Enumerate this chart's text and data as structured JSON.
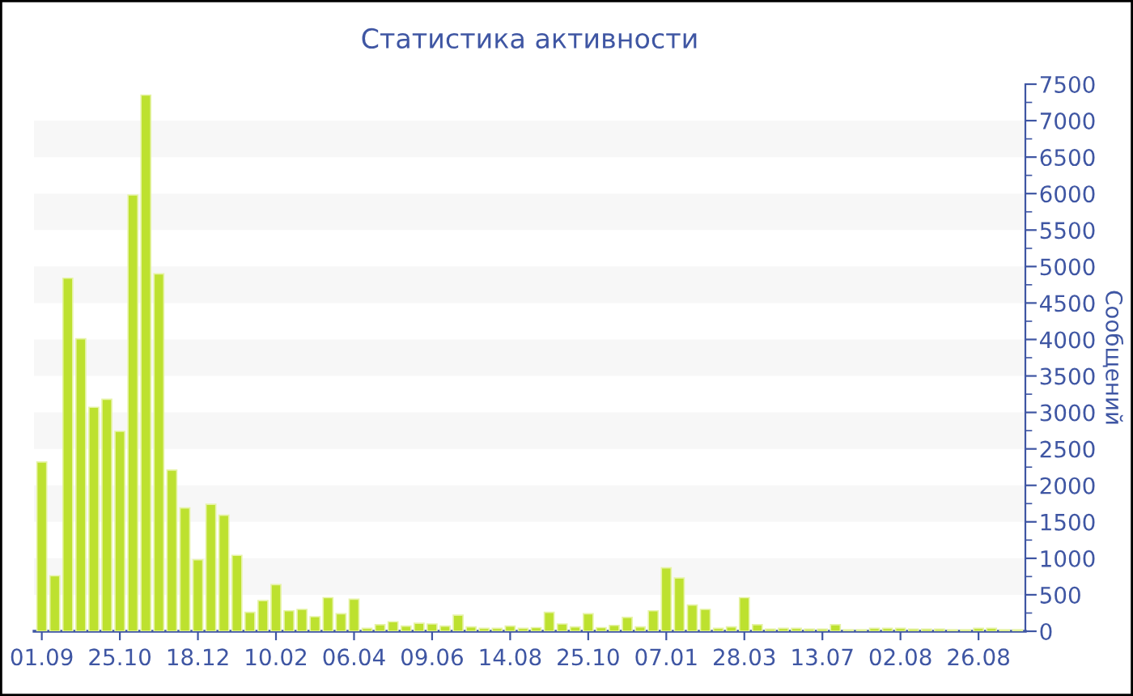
{
  "chart_data": {
    "type": "bar",
    "title": "Статистика активности",
    "y2label": "Сообщений",
    "categories": [
      "01.09",
      null,
      null,
      null,
      null,
      null,
      "25.10",
      null,
      null,
      null,
      null,
      null,
      "18.12",
      null,
      null,
      null,
      null,
      null,
      "10.02",
      null,
      null,
      null,
      null,
      null,
      "06.04",
      null,
      null,
      null,
      null,
      null,
      "09.06",
      null,
      null,
      null,
      null,
      null,
      "14.08",
      null,
      null,
      null,
      null,
      null,
      "25.10",
      null,
      null,
      null,
      null,
      null,
      "07.01",
      null,
      null,
      null,
      null,
      null,
      "28.03",
      null,
      null,
      null,
      null,
      null,
      "13.07",
      null,
      null,
      null,
      null,
      null,
      "02.08",
      null,
      null,
      null,
      null,
      null,
      "26.08",
      null,
      null,
      null
    ],
    "series": [
      {
        "axis": "y2",
        "color": "#bde12f",
        "values": [
          2320,
          760,
          4840,
          4010,
          3070,
          3180,
          2740,
          5980,
          7350,
          4900,
          2210,
          1690,
          980,
          1740,
          1590,
          1040,
          260,
          420,
          640,
          280,
          300,
          200,
          460,
          240,
          440,
          40,
          90,
          130,
          70,
          110,
          100,
          70,
          220,
          60,
          40,
          40,
          70,
          40,
          50,
          260,
          100,
          60,
          240,
          50,
          80,
          190,
          60,
          280,
          870,
          730,
          360,
          300,
          40,
          60,
          460,
          90,
          30,
          40,
          40,
          30,
          30,
          90,
          20,
          20,
          40,
          40,
          40,
          30,
          30,
          30,
          20,
          20,
          40,
          40,
          20,
          20
        ]
      }
    ],
    "y2lim": [
      0,
      7500
    ],
    "y2ticks": [
      0,
      500,
      1000,
      1500,
      2000,
      2500,
      3000,
      3500,
      4000,
      4500,
      5000,
      5500,
      6000,
      6500,
      7000,
      7500
    ],
    "bands": [
      {
        "axis": "y2",
        "from": 500,
        "to": 1000,
        "color": "#f7f7f7"
      },
      {
        "axis": "y2",
        "from": 1500,
        "to": 2000,
        "color": "#f7f7f7"
      },
      {
        "axis": "y2",
        "from": 2500,
        "to": 3000,
        "color": "#f7f7f7"
      },
      {
        "axis": "y2",
        "from": 3500,
        "to": 4000,
        "color": "#f7f7f7"
      },
      {
        "axis": "y2",
        "from": 4500,
        "to": 5000,
        "color": "#f7f7f7"
      },
      {
        "axis": "y2",
        "from": 5500,
        "to": 6000,
        "color": "#f7f7f7"
      },
      {
        "axis": "y2",
        "from": 6500,
        "to": 7000,
        "color": "#f7f7f7"
      }
    ],
    "legend": false
  }
}
